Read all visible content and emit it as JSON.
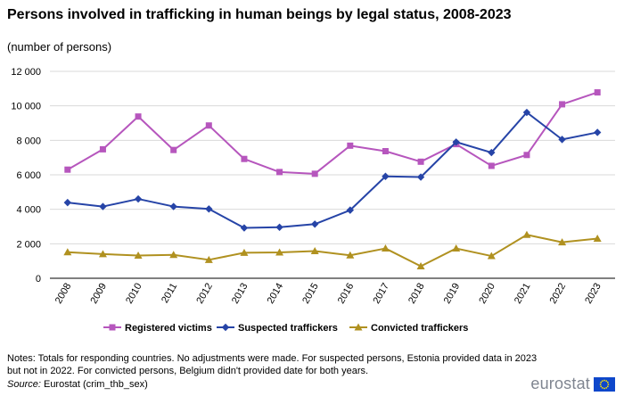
{
  "chart_data": {
    "type": "line",
    "title": "Persons involved in trafficking in human beings by legal status, 2008-2023",
    "subtitle": "(number  of persons)",
    "categories": [
      "2008",
      "2009",
      "2010",
      "2011",
      "2012",
      "2013",
      "2014",
      "2015",
      "2016",
      "2017",
      "2018",
      "2019",
      "2020",
      "2021",
      "2022",
      "2023"
    ],
    "ylim": [
      0,
      12000
    ],
    "yticks": [
      0,
      2000,
      4000,
      6000,
      8000,
      10000,
      12000
    ],
    "ytick_labels": [
      "0",
      "2 000",
      "4 000",
      "6 000",
      "8 000",
      "10 000",
      "12 000"
    ],
    "grid": true,
    "legend_position": "bottom",
    "series": [
      {
        "name": "Registered victims",
        "color": "#b656bd",
        "marker": "square",
        "values": [
          6300,
          7480,
          9380,
          7440,
          8860,
          6920,
          6160,
          6060,
          7690,
          7370,
          6760,
          7780,
          6520,
          7150,
          10090,
          10780
        ]
      },
      {
        "name": "Suspected traffickers",
        "color": "#2644a7",
        "marker": "diamond",
        "values": [
          4390,
          4160,
          4600,
          4160,
          4020,
          2920,
          2960,
          3140,
          3950,
          5910,
          5870,
          7900,
          7290,
          9620,
          8050,
          8460
        ]
      },
      {
        "name": "Convicted traffickers",
        "color": "#b09120",
        "marker": "triangle",
        "values": [
          1510,
          1400,
          1320,
          1360,
          1070,
          1480,
          1500,
          1580,
          1330,
          1730,
          700,
          1730,
          1290,
          2520,
          2090,
          2300
        ]
      }
    ]
  },
  "notes": "Notes: Totals for responding countries. No adjustments were made. For suspected persons, Estonia provided data in 2023 but not in 2022. For convicted persons, Belgium didn't provided date for both years.",
  "source_label": "Source:",
  "source_text": " Eurostat (crim_thb_sex)",
  "logo_text": "eurostat"
}
